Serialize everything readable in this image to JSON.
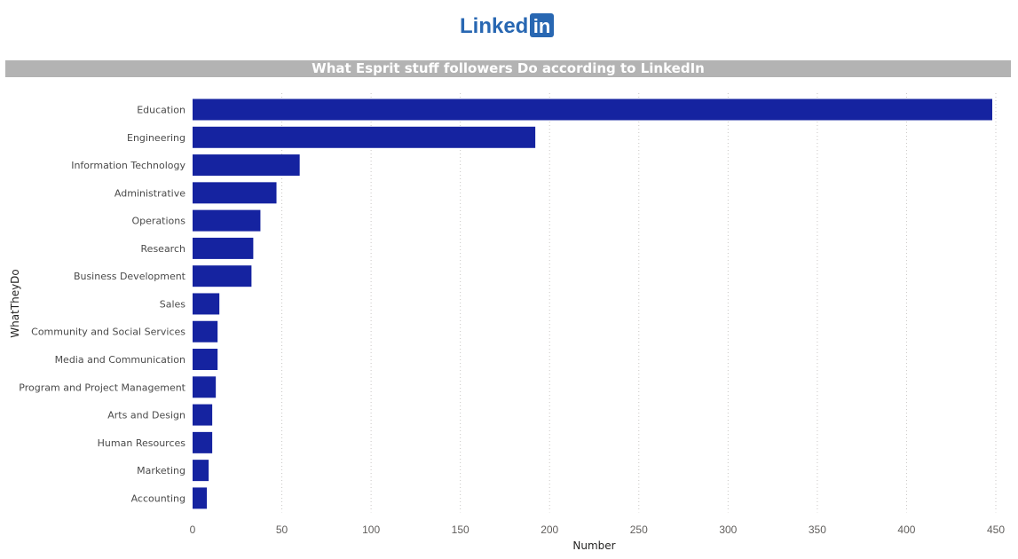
{
  "logo": {
    "text_linked": "Linked",
    "text_in": "in",
    "brand_color": "#2867B2"
  },
  "chart_data": {
    "type": "bar",
    "orientation": "horizontal",
    "title": "What Esprit stuff followers Do according to LinkedIn",
    "xlabel": "Number",
    "ylabel": "WhatTheyDo",
    "xlim": [
      0,
      450
    ],
    "xticks": [
      0,
      50,
      100,
      150,
      200,
      250,
      300,
      350,
      400,
      450
    ],
    "grid": "vertical dotted",
    "bar_color": "#1523A0",
    "categories": [
      "Education",
      "Engineering",
      "Information Technology",
      "Administrative",
      "Operations",
      "Research",
      "Business Development",
      "Sales",
      "Community and Social Services",
      "Media and Communication",
      "Program and Project Management",
      "Arts and Design",
      "Human Resources",
      "Marketing",
      "Accounting"
    ],
    "values": [
      448,
      192,
      60,
      47,
      38,
      34,
      33,
      15,
      14,
      14,
      13,
      11,
      11,
      9,
      8
    ]
  }
}
